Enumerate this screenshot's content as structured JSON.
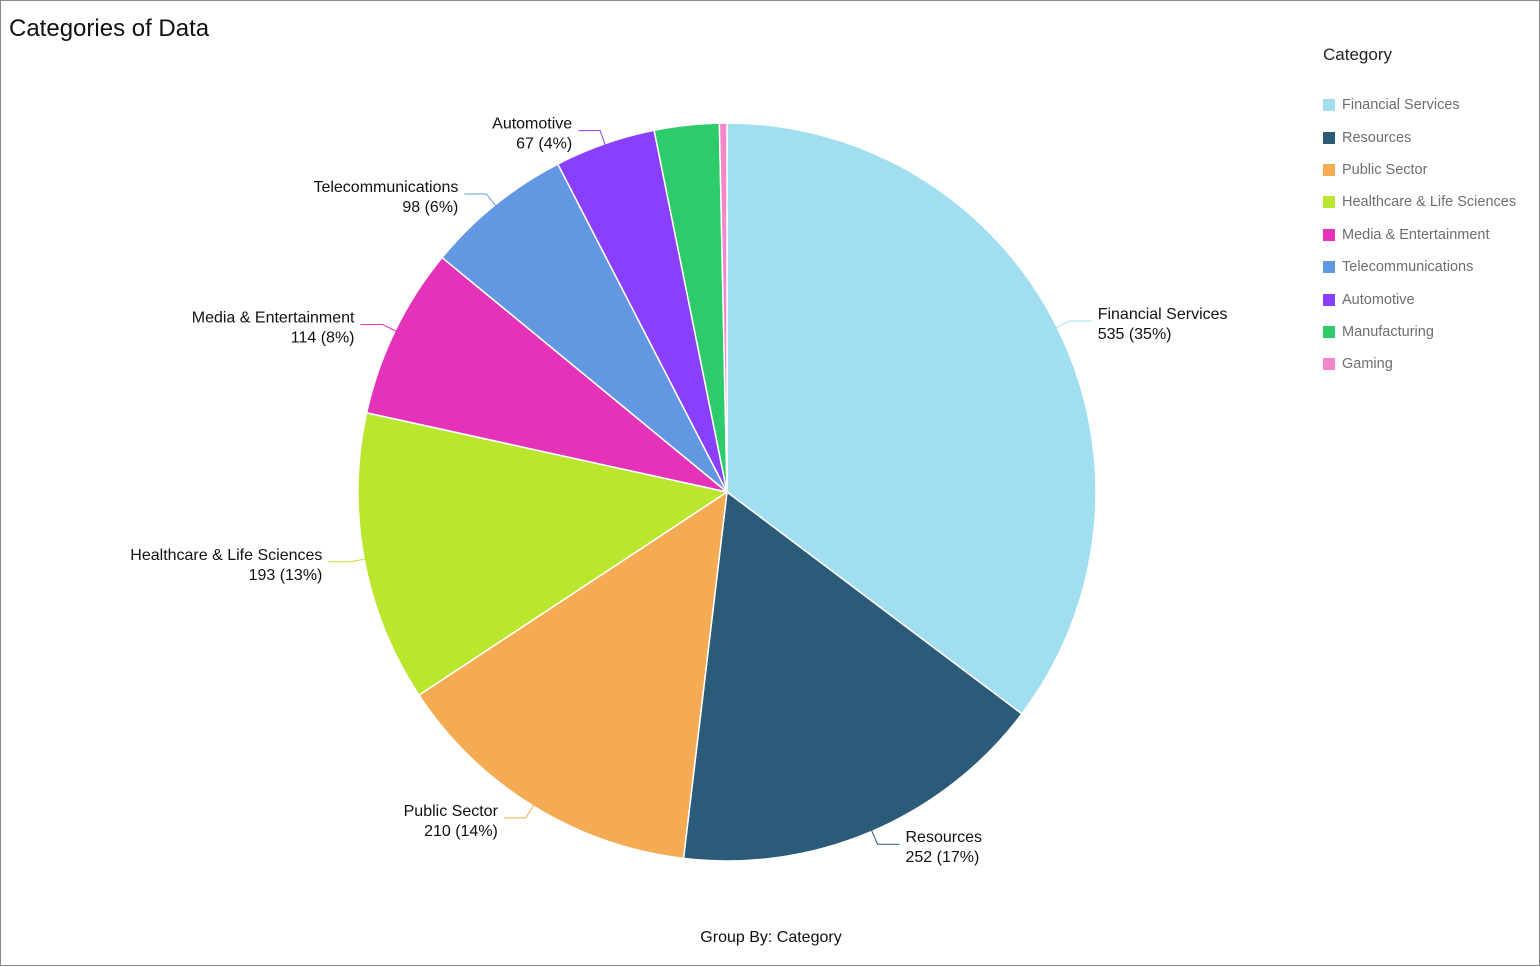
{
  "chart_data": {
    "type": "pie",
    "title": "Categories of Data",
    "legend_title": "Category",
    "legend_position": "right",
    "footer": "Group By: Category",
    "slices": [
      {
        "label": "Financial Services",
        "value": 535,
        "percent_text": "35%",
        "color": "#a1dff0"
      },
      {
        "label": "Resources",
        "value": 252,
        "percent_text": "17%",
        "color": "#2b5b78"
      },
      {
        "label": "Public Sector",
        "value": 210,
        "percent_text": "14%",
        "color": "#f5aa54"
      },
      {
        "label": "Healthcare & Life Sciences",
        "value": 193,
        "percent_text": "13%",
        "color": "#bae62e"
      },
      {
        "label": "Media & Entertainment",
        "value": 114,
        "percent_text": "8%",
        "color": "#e433b9"
      },
      {
        "label": "Telecommunications",
        "value": 98,
        "percent_text": "6%",
        "color": "#6297e1"
      },
      {
        "label": "Automotive",
        "value": 67,
        "percent_text": "4%",
        "color": "#8a3ffc"
      },
      {
        "label": "Manufacturing",
        "value": 43,
        "percent_text": "",
        "color": "#2ecb6b"
      },
      {
        "label": "Gaming",
        "value": 5,
        "percent_text": "",
        "color": "#f387c9"
      }
    ]
  }
}
